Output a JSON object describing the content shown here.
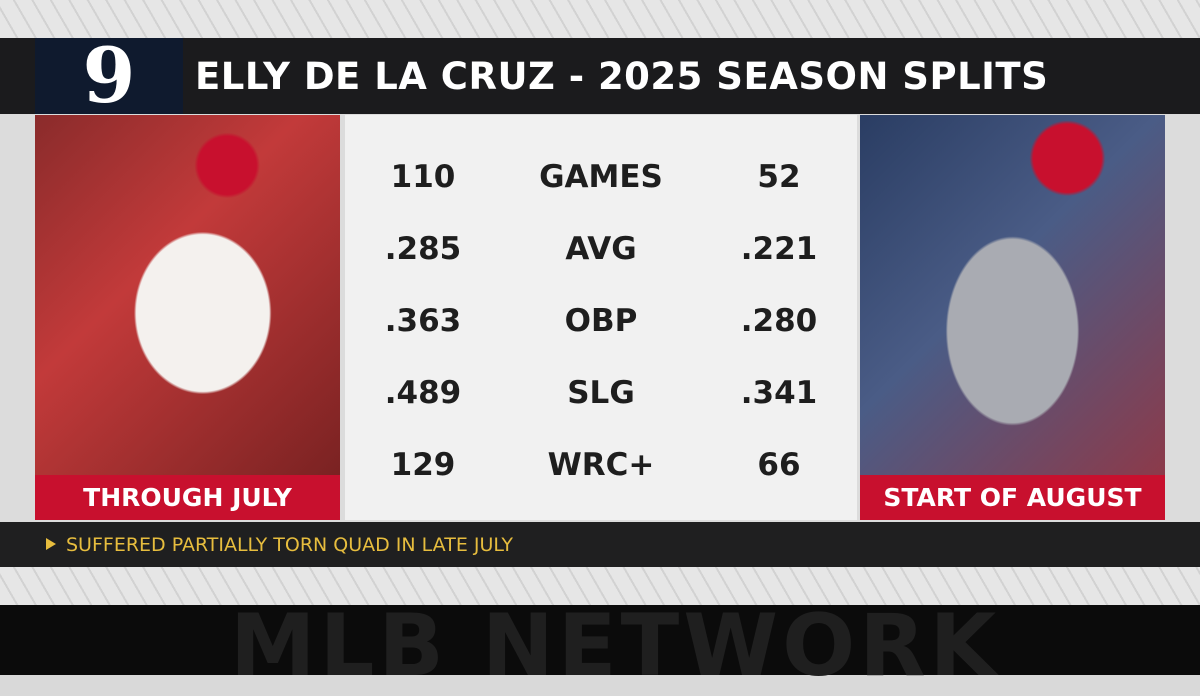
{
  "header": {
    "number": "9",
    "title": "ELLY DE LA CRUZ - 2025 SEASON SPLITS"
  },
  "left": {
    "label": "THROUGH JULY"
  },
  "right": {
    "label": "START OF AUGUST"
  },
  "table": {
    "rows": [
      [
        "110",
        "GAMES",
        "52"
      ],
      [
        ".285",
        "AVG",
        ".221"
      ],
      [
        ".363",
        "OBP",
        ".280"
      ],
      [
        ".489",
        "SLG",
        ".341"
      ],
      [
        "129",
        "WRC+",
        "66"
      ]
    ]
  },
  "footnote": "SUFFERED PARTIALLY TORN QUAD IN LATE JULY",
  "watermark": "MLB NETWORK"
}
